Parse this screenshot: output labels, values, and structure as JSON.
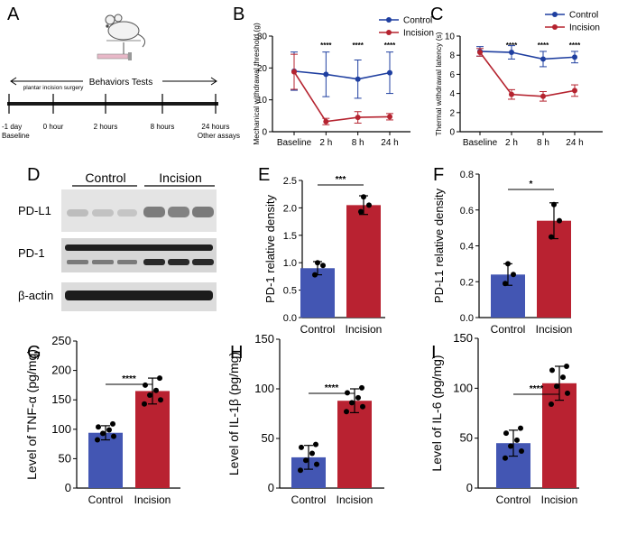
{
  "panel_letters": [
    "A",
    "B",
    "C",
    "D",
    "E",
    "F",
    "G",
    "H",
    "I"
  ],
  "colors": {
    "control": "#1f3fa0",
    "incision": "#b5232f",
    "control_bar": "#4356b3",
    "incision_bar": "#b92231",
    "axis": "#000000",
    "blot_bg": "#d9d9d9",
    "band": "#1e1e1e"
  },
  "icons": [
    "mouse-icon",
    "von-frey-filament-icon"
  ],
  "timeline": {
    "heading": "Behaviors Tests",
    "ticks": [
      {
        "top": "",
        "bottom": [
          "-1 day",
          "Baseline"
        ]
      },
      {
        "top": "plantar incision surgery",
        "bottom": [
          "0 hour"
        ]
      },
      {
        "top": "",
        "bottom": [
          "2 hours"
        ]
      },
      {
        "top": "",
        "bottom": [
          "8 hours"
        ]
      },
      {
        "top": "",
        "bottom": [
          "24 hours",
          "Other assays"
        ]
      }
    ]
  },
  "blot": {
    "groups": [
      "Control",
      "Incision"
    ],
    "rows": [
      "PD-L1",
      "PD-1",
      "β-actin"
    ]
  },
  "chart_data": [
    {
      "panel": "B",
      "type": "line",
      "title": "",
      "xlabel": "",
      "ylabel": "Mechanical withdrawal threshold (g)",
      "categories": [
        "Baseline",
        "2 h",
        "8 h",
        "24 h"
      ],
      "ylim": [
        0,
        30
      ],
      "yticks": [
        0,
        10,
        20,
        30
      ],
      "legend": "top-right",
      "significance": [
        "",
        "****",
        "****",
        "****"
      ],
      "series": [
        {
          "name": "Control",
          "values": [
            19,
            18,
            16.5,
            18.5
          ],
          "errors": [
            6,
            7,
            6,
            6.5
          ]
        },
        {
          "name": "Incision",
          "values": [
            18.8,
            3.2,
            4.5,
            4.7
          ],
          "errors": [
            5.5,
            1,
            1.8,
            1
          ]
        }
      ]
    },
    {
      "panel": "C",
      "type": "line",
      "title": "",
      "xlabel": "",
      "ylabel": "Thermal withdrawal latency (s)",
      "categories": [
        "Baseline",
        "2 h",
        "8 h",
        "24 h"
      ],
      "ylim": [
        0,
        10
      ],
      "yticks": [
        0,
        2,
        4,
        6,
        8,
        10
      ],
      "legend": "top-right",
      "significance": [
        "",
        "****",
        "****",
        "****"
      ],
      "series": [
        {
          "name": "Control",
          "values": [
            8.4,
            8.3,
            7.6,
            7.8
          ],
          "errors": [
            0.5,
            0.7,
            0.8,
            0.6
          ]
        },
        {
          "name": "Incision",
          "values": [
            8.3,
            3.9,
            3.7,
            4.3
          ],
          "errors": [
            0.4,
            0.5,
            0.5,
            0.6
          ]
        }
      ]
    },
    {
      "panel": "E",
      "type": "bar",
      "title": "",
      "xlabel": "",
      "ylabel": "PD-1 relative density",
      "categories": [
        "Control",
        "Incision"
      ],
      "values": [
        0.9,
        2.05
      ],
      "errors": [
        0.12,
        0.17
      ],
      "points": [
        [
          0.78,
          0.95,
          1.0
        ],
        [
          1.93,
          2.05,
          2.2
        ]
      ],
      "ylim": [
        0,
        2.5
      ],
      "yticks": [
        "0.0",
        "0.5",
        "1.0",
        "1.5",
        "2.0",
        "2.5"
      ],
      "significance": "***"
    },
    {
      "panel": "F",
      "type": "bar",
      "title": "",
      "xlabel": "",
      "ylabel": "PD-L1 relative density",
      "categories": [
        "Control",
        "Incision"
      ],
      "values": [
        0.24,
        0.54
      ],
      "errors": [
        0.06,
        0.1
      ],
      "points": [
        [
          0.19,
          0.24,
          0.3
        ],
        [
          0.45,
          0.54,
          0.63
        ]
      ],
      "ylim": [
        0,
        0.8
      ],
      "yticks": [
        "0.0",
        "0.2",
        "0.4",
        "0.6",
        "0.8"
      ],
      "significance": "*"
    },
    {
      "panel": "G",
      "type": "bar",
      "title": "",
      "xlabel": "",
      "ylabel": "Level of TNF-α (pg/mg)",
      "categories": [
        "Control",
        "Incision"
      ],
      "values": [
        94,
        165
      ],
      "errors": [
        12,
        22
      ],
      "points": [
        [
          82,
          88,
          93,
          99,
          104,
          109
        ],
        [
          143,
          150,
          158,
          166,
          175,
          187
        ]
      ],
      "ylim": [
        0,
        250
      ],
      "yticks": [
        "0",
        "50",
        "100",
        "150",
        "200",
        "250"
      ],
      "significance": "****"
    },
    {
      "panel": "H",
      "type": "bar",
      "title": "",
      "xlabel": "",
      "ylabel": "Level of IL-1β (pg/mg)",
      "categories": [
        "Control",
        "Incision"
      ],
      "values": [
        31,
        88
      ],
      "errors": [
        12,
        12
      ],
      "points": [
        [
          18,
          24,
          28,
          35,
          41,
          44
        ],
        [
          77,
          82,
          86,
          91,
          96,
          101
        ]
      ],
      "ylim": [
        0,
        150
      ],
      "yticks": [
        "0",
        "50",
        "100",
        "150"
      ],
      "significance": "****"
    },
    {
      "panel": "I",
      "type": "bar",
      "title": "",
      "xlabel": "",
      "ylabel": "Level of IL-6 (pg/mg)",
      "categories": [
        "Control",
        "Incision"
      ],
      "values": [
        45,
        105
      ],
      "errors": [
        13,
        17
      ],
      "points": [
        [
          30,
          37,
          42,
          48,
          55,
          60
        ],
        [
          84,
          95,
          102,
          111,
          118,
          122
        ]
      ],
      "ylim": [
        0,
        150
      ],
      "yticks": [
        "0",
        "50",
        "100",
        "150"
      ],
      "significance": "****"
    }
  ]
}
